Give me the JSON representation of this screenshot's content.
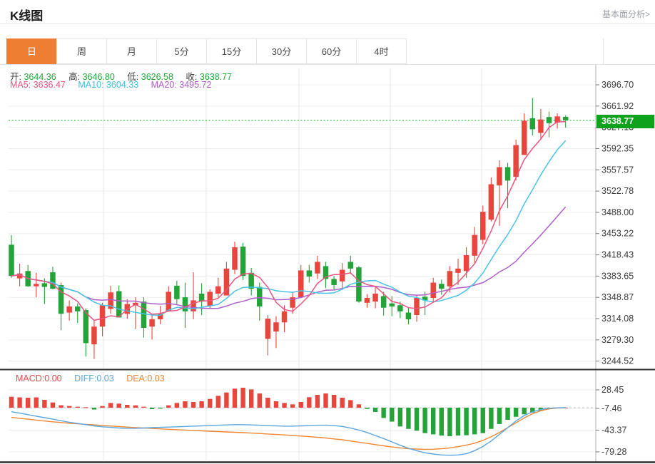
{
  "header": {
    "title": "K线图",
    "link": "基本面分析>"
  },
  "tabs": {
    "items": [
      {
        "label": "日",
        "active": true
      },
      {
        "label": "周",
        "active": false
      },
      {
        "label": "月",
        "active": false
      },
      {
        "label": "5分",
        "active": false
      },
      {
        "label": "15分",
        "active": false
      },
      {
        "label": "30分",
        "active": false
      },
      {
        "label": "60分",
        "active": false
      },
      {
        "label": "4时",
        "active": false
      }
    ]
  },
  "legend": {
    "open_label": "开:",
    "open": "3644.36",
    "high_label": "高:",
    "high": "3646.80",
    "low_label": "低:",
    "low": "3626.58",
    "close_label": "收:",
    "close": "3638.77",
    "ma5_label": "MA5:",
    "ma5": "3636.47",
    "ma10_label": "MA10:",
    "ma10": "3604.33",
    "ma20_label": "MA20:",
    "ma20": "3495.72"
  },
  "macd_legend": {
    "macd_label": "MACD:",
    "macd": "0.00",
    "diff_label": "DIFF:",
    "diff": "0.03",
    "dea_label": "DEA:",
    "dea": "0.03"
  },
  "price_badge": "3638.77",
  "colors": {
    "up": "#e8453c",
    "down": "#23a338",
    "ma5": "#e8557f",
    "ma10": "#49c2e8",
    "ma20": "#ad5fc9",
    "diff_line": "#5aa7e0",
    "dea_line": "#ef8632",
    "badge_bg": "#0fa31d",
    "price_line": "#44c554",
    "accent_tab": "#ee7e32",
    "axis_text": "#3a3a3a",
    "grid": "#ededed",
    "vgrid": "#e7e7e7",
    "axis_line": "#b0b0b0",
    "separator": "#2f2f2f"
  },
  "chart_data": {
    "type": "candlestick_with_macd",
    "title": "K线图 (daily K-line)",
    "legend_position": "top-left",
    "grid": true,
    "current_price": 3638.77,
    "y_axis_ticks": [
      "3696.70",
      "3661.92",
      "3627.13",
      "3592.35",
      "3557.57",
      "3522.78",
      "3488.00",
      "3453.22",
      "3418.43",
      "3383.65",
      "3348.87",
      "3314.08",
      "3279.30",
      "3244.52"
    ],
    "y_range": [
      3244.52,
      3696.7
    ],
    "candles_ohlc": [
      [
        3435,
        3451,
        3381,
        3384
      ],
      [
        3380,
        3404,
        3367,
        3388
      ],
      [
        3392,
        3402,
        3366,
        3367
      ],
      [
        3367,
        3389,
        3349,
        3371
      ],
      [
        3372,
        3380,
        3338,
        3366
      ],
      [
        3390,
        3399,
        3362,
        3363
      ],
      [
        3369,
        3373,
        3295,
        3322
      ],
      [
        3324,
        3344,
        3311,
        3334
      ],
      [
        3334,
        3339,
        3307,
        3326
      ],
      [
        3328,
        3331,
        3252,
        3274
      ],
      [
        3272,
        3311,
        3248,
        3301
      ],
      [
        3301,
        3340,
        3285,
        3336
      ],
      [
        3330,
        3368,
        3322,
        3357
      ],
      [
        3359,
        3368,
        3316,
        3316
      ],
      [
        3322,
        3346,
        3314,
        3338
      ],
      [
        3336,
        3349,
        3297,
        3340
      ],
      [
        3342,
        3349,
        3283,
        3299
      ],
      [
        3301,
        3322,
        3280,
        3313
      ],
      [
        3313,
        3335,
        3305,
        3322
      ],
      [
        3326,
        3367,
        3326,
        3358
      ],
      [
        3368,
        3376,
        3338,
        3346
      ],
      [
        3349,
        3373,
        3299,
        3326
      ],
      [
        3326,
        3390,
        3313,
        3344
      ],
      [
        3355,
        3372,
        3320,
        3342
      ],
      [
        3335,
        3362,
        3330,
        3358
      ],
      [
        3355,
        3381,
        3349,
        3367
      ],
      [
        3352,
        3407,
        3352,
        3396
      ],
      [
        3394,
        3440,
        3387,
        3431
      ],
      [
        3432,
        3438,
        3377,
        3384
      ],
      [
        3389,
        3397,
        3352,
        3363
      ],
      [
        3366,
        3373,
        3311,
        3334
      ],
      [
        3281,
        3320,
        3254,
        3314
      ],
      [
        3293,
        3318,
        3266,
        3308
      ],
      [
        3308,
        3336,
        3292,
        3326
      ],
      [
        3332,
        3358,
        3322,
        3349
      ],
      [
        3349,
        3402,
        3349,
        3393
      ],
      [
        3393,
        3402,
        3373,
        3383
      ],
      [
        3388,
        3417,
        3379,
        3407
      ],
      [
        3400,
        3407,
        3364,
        3379
      ],
      [
        3379,
        3384,
        3362,
        3369
      ],
      [
        3375,
        3405,
        3364,
        3394
      ],
      [
        3407,
        3417,
        3387,
        3396
      ],
      [
        3398,
        3400,
        3340,
        3342
      ],
      [
        3340,
        3354,
        3332,
        3348
      ],
      [
        3342,
        3366,
        3331,
        3355
      ],
      [
        3351,
        3358,
        3319,
        3332
      ],
      [
        3339,
        3351,
        3318,
        3334
      ],
      [
        3336,
        3342,
        3315,
        3326
      ],
      [
        3324,
        3332,
        3305,
        3313
      ],
      [
        3320,
        3353,
        3309,
        3348
      ],
      [
        3350,
        3358,
        3320,
        3344
      ],
      [
        3348,
        3381,
        3342,
        3373
      ],
      [
        3371,
        3378,
        3353,
        3363
      ],
      [
        3367,
        3400,
        3357,
        3392
      ],
      [
        3389,
        3412,
        3369,
        3396
      ],
      [
        3392,
        3431,
        3381,
        3418
      ],
      [
        3417,
        3464,
        3404,
        3451
      ],
      [
        3443,
        3499,
        3436,
        3489
      ],
      [
        3476,
        3545,
        3473,
        3534
      ],
      [
        3532,
        3573,
        3466,
        3562
      ],
      [
        3562,
        3569,
        3495,
        3540
      ],
      [
        3546,
        3607,
        3540,
        3598
      ],
      [
        3582,
        3650,
        3582,
        3638
      ],
      [
        3642,
        3675,
        3614,
        3624
      ],
      [
        3618,
        3657,
        3607,
        3640
      ],
      [
        3644,
        3653,
        3611,
        3634
      ],
      [
        3635,
        3650,
        3625,
        3645
      ],
      [
        3644.36,
        3646.8,
        3626.58,
        3638.77
      ]
    ],
    "ma_periods": [
      5,
      10,
      20
    ],
    "ma_current": {
      "ma5": 3636.47,
      "ma10": 3604.33,
      "ma20": 3495.72
    },
    "macd": {
      "y_axis_ticks": [
        "28.45",
        "-7.46",
        "-43.37",
        "-79.28"
      ],
      "current": {
        "macd": 0.0,
        "diff": 0.03,
        "dea": 0.03
      },
      "hist": [
        18,
        17,
        16.5,
        17,
        13,
        8.6,
        4,
        2.7,
        1.6,
        0.8,
        -3,
        2.7,
        7.8,
        6.7,
        4.7,
        3.9,
        1.6,
        -2.4,
        -1.5,
        3.9,
        7.8,
        10.6,
        9.4,
        10.6,
        14.5,
        19.6,
        25.1,
        31.4,
        33,
        30.2,
        23.5,
        16.5,
        10.6,
        7.8,
        5.5,
        9.4,
        17.3,
        21.2,
        23.5,
        21.2,
        16.5,
        12.5,
        5.5,
        -2,
        -7,
        -17,
        -23,
        -31,
        -35,
        -38,
        -42,
        -44,
        -46,
        -47,
        -46,
        -45.5,
        -44,
        -42,
        -35,
        -27,
        -20,
        -15,
        -11,
        -8,
        -5,
        -2,
        -0.5,
        0
      ],
      "diff": [
        -6.7,
        -9,
        -11.5,
        -14,
        -16.5,
        -19,
        -21.5,
        -24,
        -26,
        -28,
        -30,
        -31.5,
        -32.5,
        -33.5,
        -34,
        -34,
        -33.5,
        -33,
        -32.5,
        -32,
        -31.5,
        -31,
        -30.5,
        -30,
        -29.5,
        -29,
        -28.5,
        -28,
        -28,
        -28.5,
        -29,
        -29.5,
        -30,
        -30.5,
        -30.5,
        -30,
        -29.5,
        -29,
        -29,
        -29.5,
        -31,
        -33.5,
        -37,
        -41,
        -46,
        -51,
        -56.5,
        -62,
        -67,
        -71,
        -74.5,
        -76.5,
        -78,
        -78.5,
        -78,
        -76,
        -71,
        -64,
        -55,
        -44,
        -33,
        -22,
        -13,
        -7,
        -3,
        -1,
        -0.2,
        0.03
      ],
      "dea": [
        -16,
        -17.5,
        -19,
        -20.5,
        -22,
        -23.3,
        -24.5,
        -25.6,
        -26.6,
        -27.5,
        -28.4,
        -29.3,
        -30.2,
        -31.1,
        -32,
        -32.8,
        -33.6,
        -34.3,
        -35,
        -35.7,
        -36.4,
        -37,
        -37.6,
        -38.2,
        -38.8,
        -39.4,
        -40,
        -40.6,
        -41.2,
        -41.9,
        -42.6,
        -43.4,
        -44.2,
        -45,
        -45.9,
        -46.8,
        -47.8,
        -48.8,
        -50,
        -51.5,
        -53,
        -55,
        -57,
        -59,
        -61,
        -63,
        -64.8,
        -66.4,
        -67.6,
        -68.4,
        -68.8,
        -68.6,
        -67.8,
        -66.4,
        -64.4,
        -61.8,
        -58.6,
        -54,
        -48,
        -41,
        -33,
        -25,
        -17,
        -10,
        -5,
        -2,
        -0.5,
        0.03
      ]
    }
  }
}
